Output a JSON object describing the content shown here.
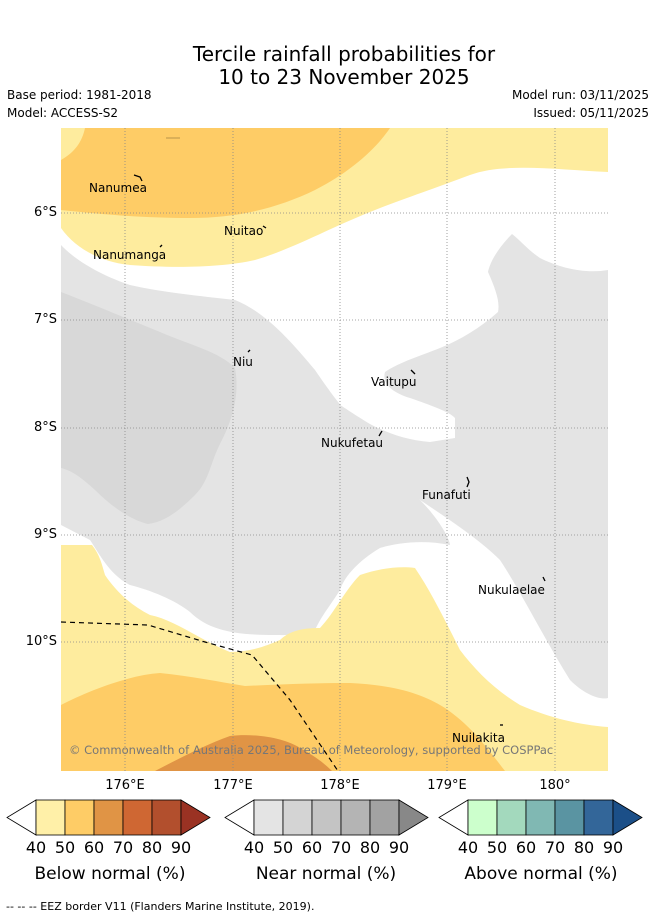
{
  "title": {
    "line1": "Tercile rainfall probabilities for",
    "line2": "10 to 23 November 2025"
  },
  "meta": {
    "base_period": "Base period: 1981-2018",
    "model": "Model: ACCESS-S2",
    "model_run": "Model run: 03/11/2025",
    "issued": "Issued: 05/11/2025"
  },
  "map": {
    "lat_labels": [
      "6°S",
      "7°S",
      "8°S",
      "9°S",
      "10°S"
    ],
    "lon_labels": [
      "176°E",
      "177°E",
      "178°E",
      "179°E",
      "180°"
    ],
    "places": [
      "Nanumea",
      "Nuitao",
      "Nanumanga",
      "Niu",
      "Vaitupu",
      "Nukufetau",
      "Funafuti",
      "Nukulaelae",
      "Nuilakita"
    ],
    "copyright": "© Commonwealth of Australia 2025, Bureau of Meteorology, supported by COSPPac"
  },
  "colorbars": [
    {
      "title": "Below normal (%)",
      "ticks": [
        "40",
        "50",
        "60",
        "70",
        "80",
        "90"
      ],
      "colors": [
        "#fff0a8",
        "#fecc66",
        "#e09445",
        "#cf6733",
        "#b24f2d",
        "#9a3223"
      ]
    },
    {
      "title": "Near normal (%)",
      "ticks": [
        "40",
        "50",
        "60",
        "70",
        "80",
        "90"
      ],
      "colors": [
        "#e4e4e4",
        "#d4d4d4",
        "#c4c4c4",
        "#b4b4b4",
        "#a2a2a2",
        "#888888"
      ]
    },
    {
      "title": "Above normal (%)",
      "ticks": [
        "40",
        "50",
        "60",
        "70",
        "80",
        "90"
      ],
      "colors": [
        "#ccffcc",
        "#a3d9bd",
        "#80b8b3",
        "#5a94a2",
        "#336699",
        "#1b4f88"
      ]
    }
  ],
  "colors": {
    "below_40": "#feec9e",
    "below_50": "#fecc66",
    "below_60": "#e09445",
    "near_40": "#e4e4e4",
    "near_50": "#d8d8d8"
  },
  "footer": "--  --  -- EEZ border V11 (Flanders Marine Institute, 2019)."
}
